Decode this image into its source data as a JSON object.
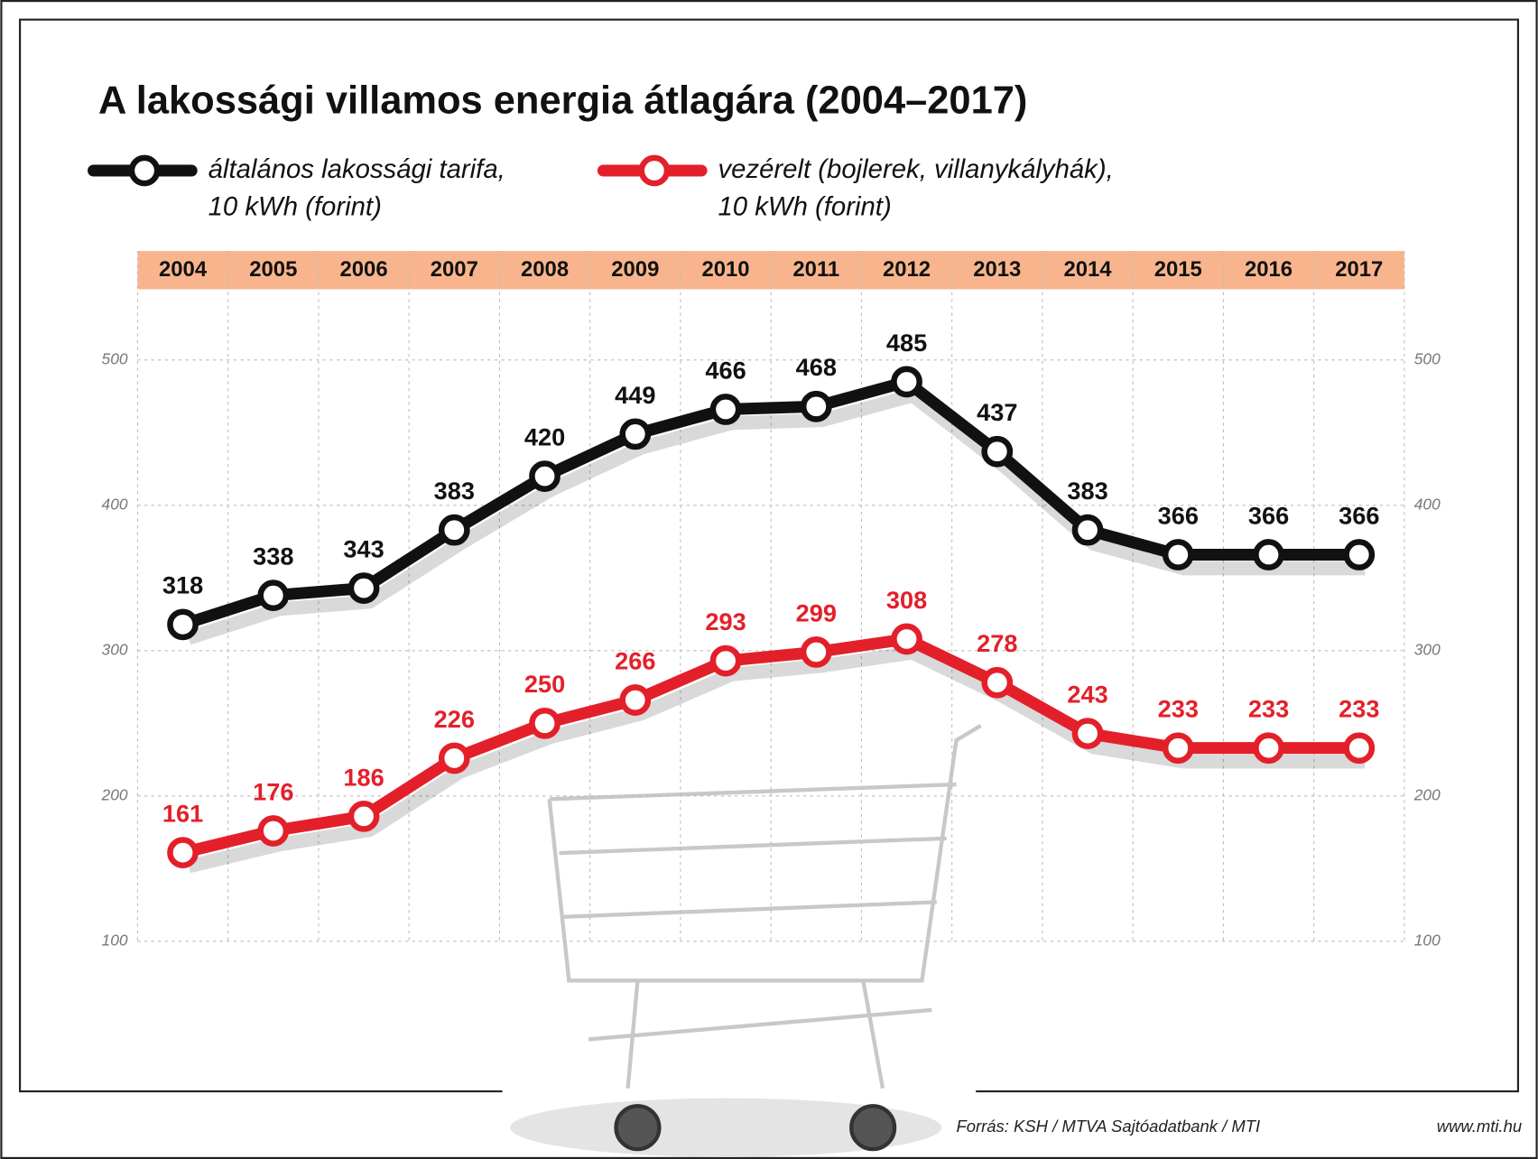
{
  "chart_data": {
    "type": "line",
    "title": "A lakossági villamos energia átlagára (2004–2017)",
    "categories": [
      "2004",
      "2005",
      "2006",
      "2007",
      "2008",
      "2009",
      "2010",
      "2011",
      "2012",
      "2013",
      "2014",
      "2015",
      "2016",
      "2017"
    ],
    "series": [
      {
        "name": "általános lakossági tarifa, 10 kWh (forint)",
        "color": "#111111",
        "values": [
          318,
          338,
          343,
          383,
          420,
          449,
          466,
          468,
          485,
          437,
          383,
          366,
          366,
          366
        ]
      },
      {
        "name": "vezérelt (bojlerek, villanykályhák), 10 kWh (forint)",
        "color": "#e3202a",
        "values": [
          161,
          176,
          186,
          226,
          250,
          266,
          293,
          299,
          308,
          278,
          243,
          233,
          233,
          233
        ]
      }
    ],
    "ylim": [
      100,
      550
    ],
    "yticks": [
      100,
      200,
      300,
      400,
      500
    ],
    "grid": true,
    "source": "Forrás: KSH / MTVA Sajtóadatbank / MTI",
    "url": "www.mti.hu"
  }
}
